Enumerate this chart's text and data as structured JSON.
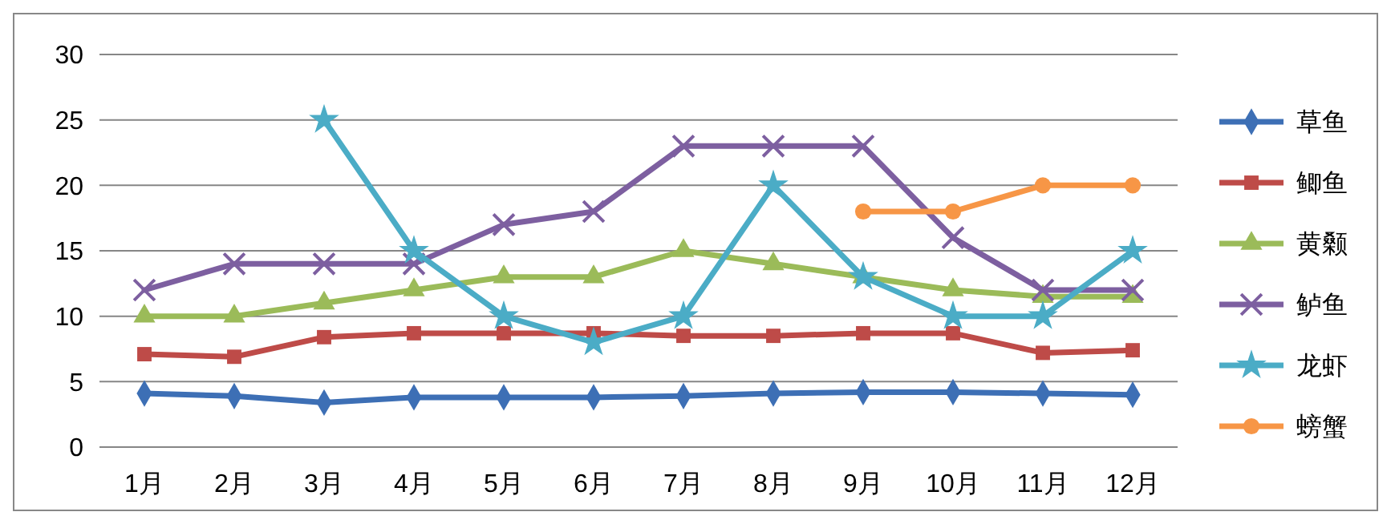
{
  "chart_data": {
    "type": "line",
    "categories": [
      "1月",
      "2月",
      "3月",
      "4月",
      "5月",
      "6月",
      "7月",
      "8月",
      "9月",
      "10月",
      "11月",
      "12月"
    ],
    "ylim": [
      0,
      30
    ],
    "yticks": [
      0,
      5,
      10,
      15,
      20,
      25,
      30
    ],
    "grid": "y",
    "legend": "right",
    "line_style": "solid",
    "series": [
      {
        "name": "草鱼",
        "color": "#3d6fb5",
        "marker": "diamond",
        "values": [
          4.1,
          3.9,
          3.4,
          3.8,
          3.8,
          3.8,
          3.9,
          4.1,
          4.2,
          4.2,
          4.1,
          4.0
        ]
      },
      {
        "name": "鲫鱼",
        "color": "#be4b48",
        "marker": "square",
        "values": [
          7.1,
          6.9,
          8.4,
          8.7,
          8.7,
          8.7,
          8.5,
          8.5,
          8.7,
          8.7,
          7.2,
          7.4
        ]
      },
      {
        "name": "黄颡",
        "color": "#9bbb59",
        "marker": "triangle",
        "values": [
          10,
          10,
          11,
          12,
          13,
          13,
          15,
          14,
          13,
          12,
          11.5,
          11.5
        ]
      },
      {
        "name": "鲈鱼",
        "color": "#7d5fa0",
        "marker": "cross",
        "values": [
          12,
          14,
          14,
          14,
          17,
          18,
          23,
          23,
          23,
          16,
          12,
          12
        ]
      },
      {
        "name": "龙虾",
        "color": "#4bacc6",
        "marker": "star",
        "values": [
          null,
          null,
          25,
          15,
          10,
          8,
          10,
          20,
          13,
          10,
          10,
          15
        ]
      },
      {
        "name": "螃蟹",
        "color": "#f79646",
        "marker": "circle",
        "values": [
          null,
          null,
          null,
          null,
          null,
          null,
          null,
          null,
          18,
          18,
          20,
          20
        ]
      }
    ]
  }
}
